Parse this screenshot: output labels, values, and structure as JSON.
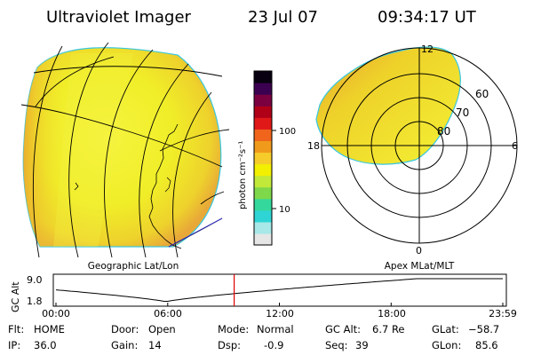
{
  "header": {
    "instrument": "Ultraviolet Imager",
    "date": "23 Jul 07",
    "time": "09:34:17 UT"
  },
  "colorbar": {
    "label": "photon cm⁻²s⁻¹",
    "ticks": [
      {
        "label": "100",
        "value": 100
      },
      {
        "label": "10",
        "value": 10
      }
    ],
    "colors": [
      "#e6e6e6",
      "#a8e8e8",
      "#2fd4d4",
      "#34d89c",
      "#7ed84a",
      "#c2e83a",
      "#f2f000",
      "#f6cc2a",
      "#f09a1c",
      "#f0641c",
      "#e01818",
      "#b00018",
      "#7a0040",
      "#3c0050",
      "#080010"
    ]
  },
  "geo_panel": {
    "label": "Geographic Lat/Lon",
    "glow_color": "#f2f02a",
    "edge_color": "#e8a030"
  },
  "polar_panel": {
    "label": "Apex MLat/MLT",
    "lat_labels": [
      "60",
      "70",
      "80"
    ],
    "mlt_labels": {
      "top": "12",
      "right": "6",
      "bottom": "0",
      "left": "18"
    }
  },
  "altitude_plot": {
    "ylabel": "GC Alt",
    "yticks": [
      "9.0",
      "1.8"
    ],
    "xticks": [
      "00:00",
      "06:00",
      "12:00",
      "18:00",
      "23:59"
    ],
    "current_time_marker_hours": 9.57,
    "marker_color": "#e00000"
  },
  "status": {
    "flt": {
      "label": "Flt:",
      "value": "HOME"
    },
    "ip": {
      "label": "IP:",
      "value": "36.0"
    },
    "door": {
      "label": "Door:",
      "value": "Open"
    },
    "gain": {
      "label": "Gain:",
      "value": "14"
    },
    "mode": {
      "label": "Mode:",
      "value": "Normal"
    },
    "dsp": {
      "label": "Dsp:",
      "value": "-0.9"
    },
    "gcalt": {
      "label": "GC Alt:",
      "value": "6.7 Re"
    },
    "seq": {
      "label": "Seq:",
      "value": "39"
    },
    "glat": {
      "label": "GLat:",
      "value": "−58.7"
    },
    "glon": {
      "label": "GLon:",
      "value": "85.6"
    }
  }
}
